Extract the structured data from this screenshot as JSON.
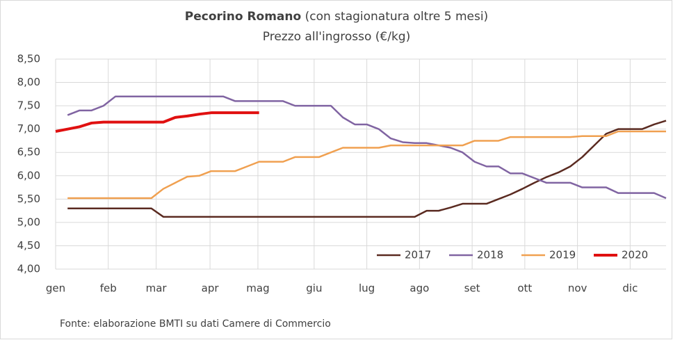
{
  "chart_data": {
    "type": "line",
    "title": "Pecorino Romano",
    "title_note": "(con stagionatura oltre 5 mesi)",
    "subtitle": "Prezzo all'ingrosso (€/kg)",
    "source": "Fonte: elaborazione BMTI su dati Camere di Commercio",
    "x": [
      0,
      1,
      2,
      3,
      4,
      5,
      6,
      7,
      8,
      9,
      10,
      11,
      12,
      13,
      14,
      15,
      16,
      17,
      18,
      19,
      20,
      21,
      22,
      23,
      24,
      25,
      26,
      27,
      28,
      29,
      30,
      31,
      32,
      33,
      34,
      35,
      36,
      37,
      38,
      39,
      40,
      41,
      42,
      43,
      44,
      45,
      46,
      47,
      48,
      49,
      50,
      51
    ],
    "xlim": [
      0,
      51
    ],
    "xticks": [
      {
        "value": 0,
        "label": "gen"
      },
      {
        "value": 4.4,
        "label": "feb"
      },
      {
        "value": 8.4,
        "label": "mar"
      },
      {
        "value": 12.9,
        "label": "apr"
      },
      {
        "value": 16.9,
        "label": "mag"
      },
      {
        "value": 21.6,
        "label": "giu"
      },
      {
        "value": 26,
        "label": "lug"
      },
      {
        "value": 30.4,
        "label": "ago"
      },
      {
        "value": 34.8,
        "label": "set"
      },
      {
        "value": 39.2,
        "label": "ott"
      },
      {
        "value": 43.6,
        "label": "nov"
      },
      {
        "value": 48,
        "label": "dic"
      }
    ],
    "ylim": [
      4,
      8.5
    ],
    "yticks": [
      {
        "value": 4,
        "label": "4,00"
      },
      {
        "value": 4.5,
        "label": "4,50"
      },
      {
        "value": 5,
        "label": "5,00"
      },
      {
        "value": 5.5,
        "label": "5,50"
      },
      {
        "value": 6,
        "label": "6,00"
      },
      {
        "value": 6.5,
        "label": "6,50"
      },
      {
        "value": 7,
        "label": "7,00"
      },
      {
        "value": 7.5,
        "label": "7,50"
      },
      {
        "value": 8,
        "label": "8,00"
      },
      {
        "value": 8.5,
        "label": "8,50"
      }
    ],
    "grid": true,
    "legend": "lower right",
    "series": [
      {
        "name": "2017",
        "color": "#5a2a20",
        "values": [
          null,
          5.3,
          5.3,
          5.3,
          5.3,
          5.3,
          5.3,
          5.3,
          5.3,
          5.12,
          5.12,
          5.12,
          5.12,
          5.12,
          5.12,
          5.12,
          5.12,
          5.12,
          5.12,
          5.12,
          5.12,
          5.12,
          5.12,
          5.12,
          5.12,
          5.12,
          5.12,
          5.12,
          5.12,
          5.12,
          5.12,
          5.25,
          5.25,
          5.32,
          5.4,
          5.4,
          5.4,
          5.5,
          5.6,
          5.72,
          5.85,
          5.97,
          6.07,
          6.2,
          6.4,
          6.65,
          6.9,
          7.0,
          7.0,
          7.0,
          7.1,
          7.18
        ]
      },
      {
        "name": "2018",
        "color": "#8064a2",
        "values": [
          null,
          7.3,
          7.4,
          7.4,
          7.5,
          7.7,
          7.7,
          7.7,
          7.7,
          7.7,
          7.7,
          7.7,
          7.7,
          7.7,
          7.7,
          7.6,
          7.6,
          7.6,
          7.6,
          7.6,
          7.5,
          7.5,
          7.5,
          7.5,
          7.25,
          7.1,
          7.1,
          7.0,
          6.8,
          6.72,
          6.7,
          6.7,
          6.65,
          6.6,
          6.5,
          6.3,
          6.2,
          6.2,
          6.05,
          6.05,
          5.95,
          5.85,
          5.85,
          5.85,
          5.75,
          5.75,
          5.75,
          5.63,
          5.63,
          5.63,
          5.63,
          5.52
        ]
      },
      {
        "name": "2019",
        "color": "#f0a050",
        "values": [
          null,
          5.52,
          5.52,
          5.52,
          5.52,
          5.52,
          5.52,
          5.52,
          5.52,
          5.72,
          5.85,
          5.98,
          6.0,
          6.1,
          6.1,
          6.1,
          6.2,
          6.3,
          6.3,
          6.3,
          6.4,
          6.4,
          6.4,
          6.5,
          6.6,
          6.6,
          6.6,
          6.6,
          6.65,
          6.65,
          6.65,
          6.65,
          6.65,
          6.65,
          6.65,
          6.75,
          6.75,
          6.75,
          6.83,
          6.83,
          6.83,
          6.83,
          6.83,
          6.83,
          6.85,
          6.85,
          6.85,
          6.95,
          6.95,
          6.95,
          6.95,
          6.95
        ]
      },
      {
        "name": "2020",
        "color": "#e01010",
        "values": [
          6.95,
          7.0,
          7.05,
          7.13,
          7.15,
          7.15,
          7.15,
          7.15,
          7.15,
          7.15,
          7.25,
          7.28,
          7.32,
          7.35,
          7.35,
          7.35,
          7.35,
          7.35,
          null,
          null,
          null,
          null,
          null,
          null,
          null,
          null,
          null,
          null,
          null,
          null,
          null,
          null,
          null,
          null,
          null,
          null,
          null,
          null,
          null,
          null,
          null,
          null,
          null,
          null,
          null,
          null,
          null,
          null,
          null,
          null,
          null,
          null
        ]
      }
    ]
  }
}
